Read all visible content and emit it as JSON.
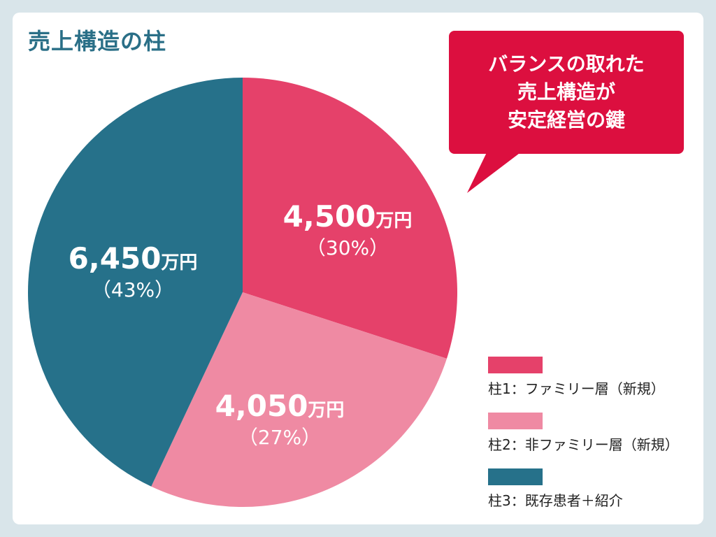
{
  "title": "売上構造の柱",
  "callout": {
    "lines": [
      "バランスの取れた",
      "売上構造が",
      "安定経営の鍵"
    ],
    "color": "#dc0f3f"
  },
  "chart_data": {
    "type": "pie",
    "title": "売上構造の柱",
    "unit": "万円",
    "slices": [
      {
        "legend": "柱1：ファミリー層（新規）",
        "value": 4500,
        "value_label": "4,500",
        "pct_label": "（30%）",
        "percent": 30,
        "color": "#e5416a"
      },
      {
        "legend": "柱2：非ファミリー層（新規）",
        "value": 4050,
        "value_label": "4,050",
        "pct_label": "（27%）",
        "percent": 27,
        "color": "#ef8aa3"
      },
      {
        "legend": "柱3：既存患者＋紹介",
        "value": 6450,
        "value_label": "6,450",
        "pct_label": "（43%）",
        "percent": 43,
        "color": "#26718a"
      }
    ],
    "legend_position": "bottom-right"
  }
}
